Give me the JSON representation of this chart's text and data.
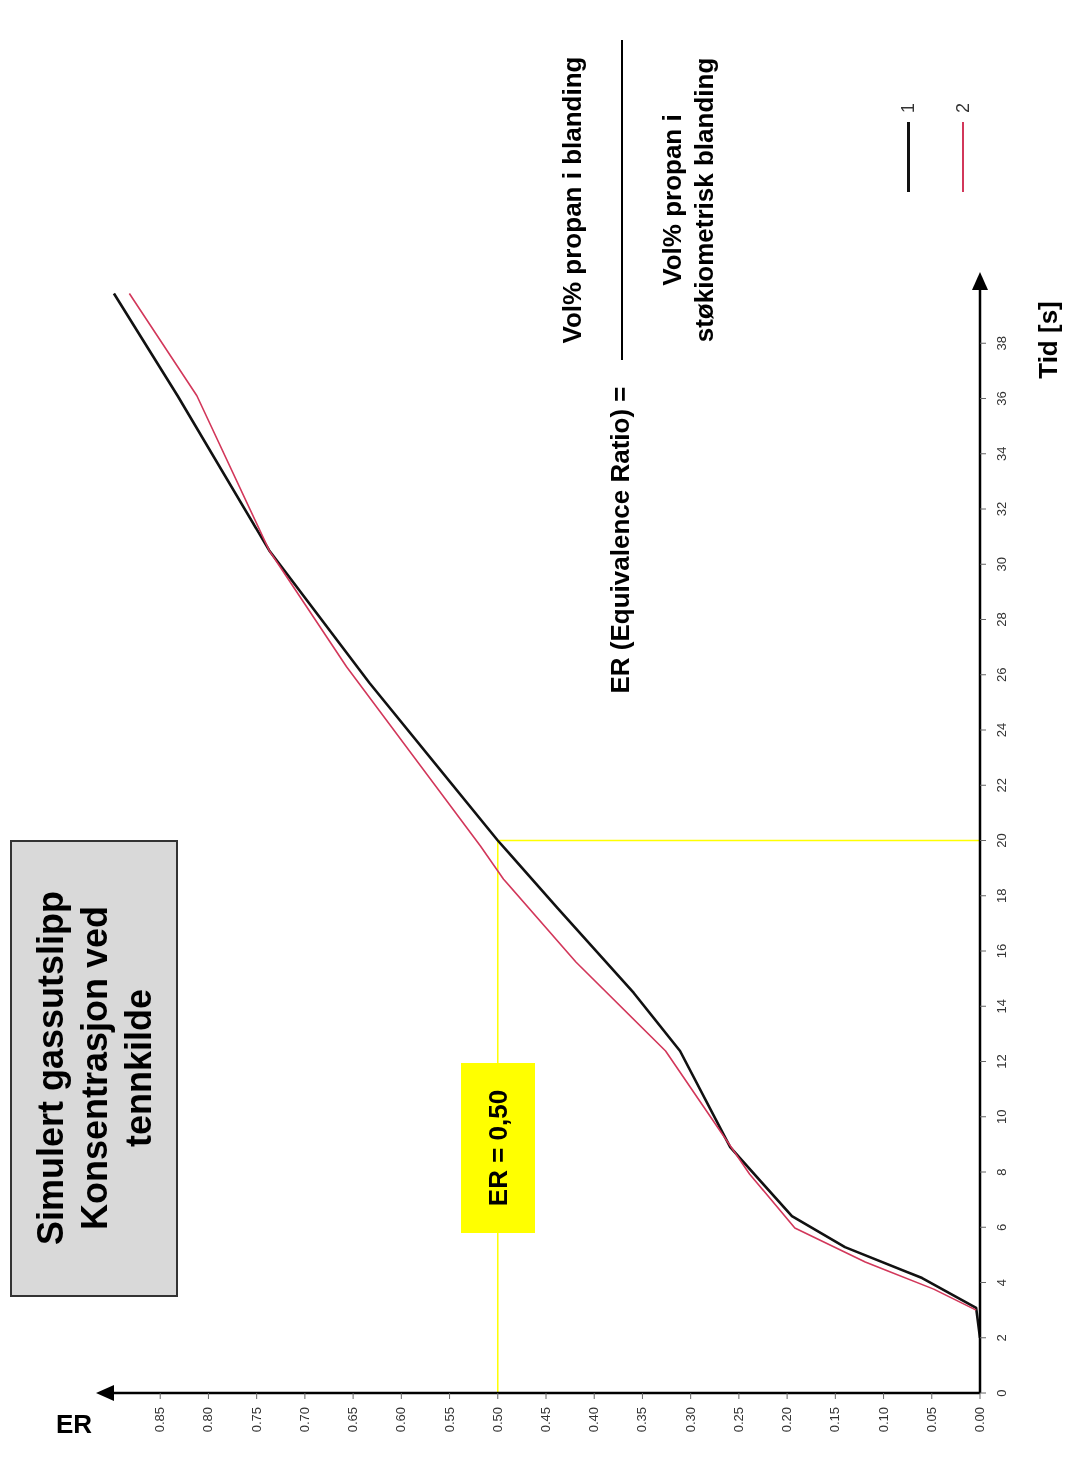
{
  "chart_data": {
    "type": "line",
    "title": "Simulert gassutslipp",
    "subtitle": "Konsentrasjon ved tennkilde",
    "xlabel": "ER",
    "ylabel": "Tid [s]",
    "annotations": [
      "ER (Equivalence Ratio) =",
      "Vol% propan i blanding",
      "Vol% propan i støkiometrisk blanding"
    ],
    "series": [
      {
        "name": "1",
        "color": "#111111",
        "x": [
          0,
          0.004,
          0.06,
          0.14,
          0.195,
          0.259,
          0.311,
          0.359,
          0.438,
          0.5,
          0.633,
          0.737,
          0.832,
          0.898
        ],
        "values": [
          2,
          3.08,
          4.16,
          5.28,
          6.4,
          8.9,
          12.38,
          14.48,
          17.55,
          20,
          25.7,
          30.5,
          36.1,
          39.8
        ]
      },
      {
        "name": "2",
        "color": "#d2375a",
        "x": [
          0.004,
          0.048,
          0.119,
          0.192,
          0.239,
          0.326,
          0.419,
          0.494,
          0.518,
          0.657,
          0.737,
          0.812,
          0.882
        ],
        "values": [
          3.0,
          3.76,
          4.74,
          5.97,
          7.93,
          12.38,
          15.6,
          18.6,
          19.8,
          26.3,
          30.5,
          36.1,
          39.8
        ]
      }
    ],
    "xlim": [
      0.9,
      0
    ],
    "xticks": [
      {
        "value": 0,
        "label": "0.00"
      },
      {
        "value": 0.05,
        "label": "0.05"
      },
      {
        "value": 0.1,
        "label": "0.10"
      },
      {
        "value": 0.15,
        "label": "0.15"
      },
      {
        "value": 0.2,
        "label": "0.20"
      },
      {
        "value": 0.25,
        "label": "0.25"
      },
      {
        "value": 0.3,
        "label": "0.30"
      },
      {
        "value": 0.35,
        "label": "0.35"
      },
      {
        "value": 0.4,
        "label": "0.40"
      },
      {
        "value": 0.45,
        "label": "0.45"
      },
      {
        "value": 0.5,
        "label": "0.50"
      },
      {
        "value": 0.55,
        "label": "0.55"
      },
      {
        "value": 0.6,
        "label": "0.60"
      },
      {
        "value": 0.65,
        "label": "0.65"
      },
      {
        "value": 0.7,
        "label": "0.70"
      },
      {
        "value": 0.75,
        "label": "0.75"
      },
      {
        "value": 0.8,
        "label": "0.80"
      },
      {
        "value": 0.85,
        "label": "0.85"
      }
    ],
    "ylim": [
      0,
      40
    ],
    "yticks": [
      0,
      2,
      4,
      6,
      8,
      10,
      12,
      14,
      16,
      18,
      20,
      22,
      24,
      26,
      28,
      30,
      32,
      34,
      36,
      38
    ],
    "ref_lines": [
      {
        "axis": "x",
        "value": 0.5,
        "label": "ER = 0,50",
        "color": "#ffff00"
      },
      {
        "axis": "y",
        "value": 20,
        "color": "#ffff00"
      }
    ],
    "grid": false,
    "legend": "top right",
    "marker": "none",
    "line_style": "solid"
  }
}
